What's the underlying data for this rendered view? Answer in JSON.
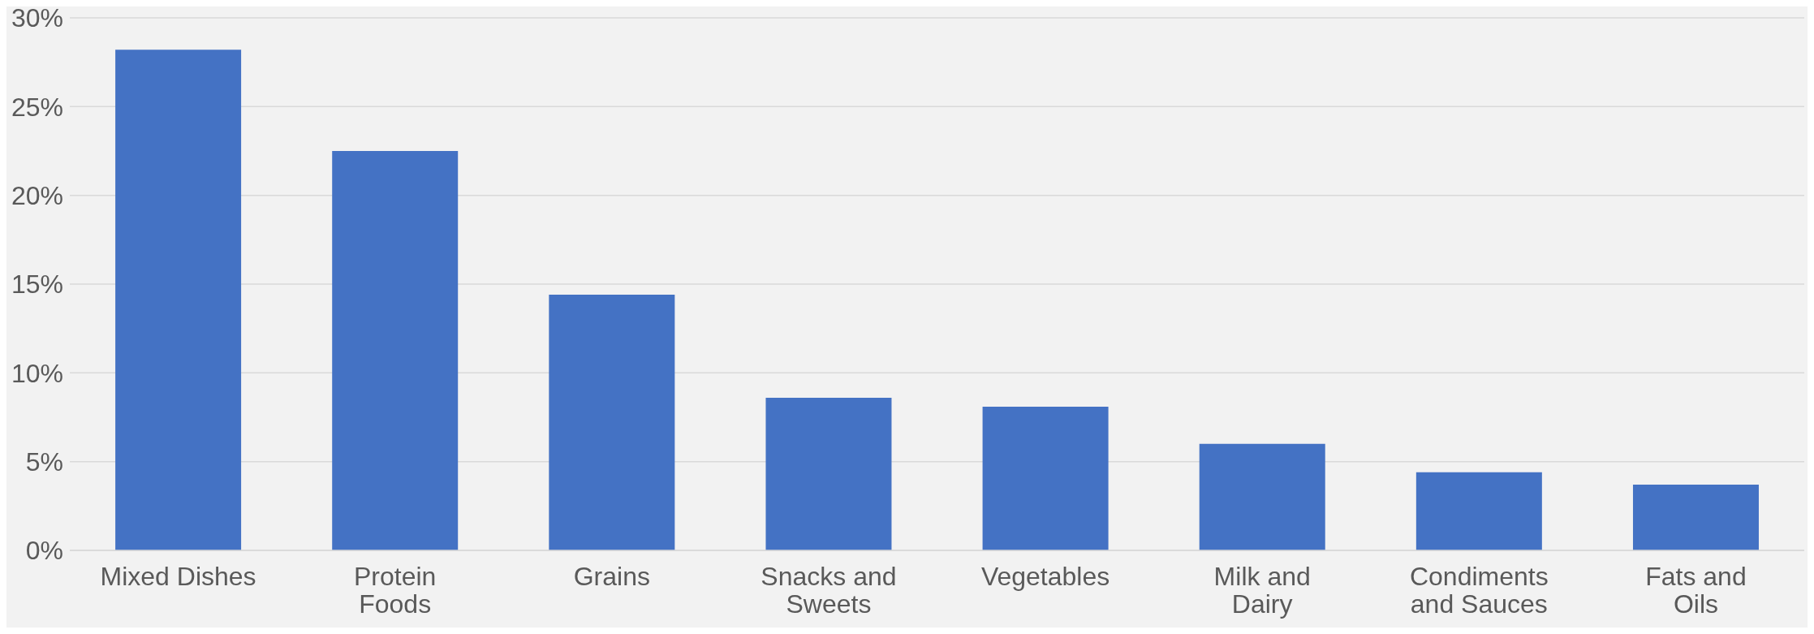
{
  "chart_data": {
    "type": "bar",
    "categories": [
      "Mixed Dishes",
      "Protein Foods",
      "Grains",
      "Snacks and Sweets",
      "Vegetables",
      "Milk and Dairy",
      "Condiments and Sauces",
      "Fats and Oils"
    ],
    "values": [
      28.2,
      22.5,
      14.4,
      8.6,
      8.1,
      6.0,
      4.4,
      3.7
    ],
    "color": "#4472c4",
    "ylim": [
      0,
      30
    ],
    "yticks": [
      {
        "value": 0,
        "label": "0%"
      },
      {
        "value": 5,
        "label": "5%"
      },
      {
        "value": 10,
        "label": "10%"
      },
      {
        "value": 15,
        "label": "15%"
      },
      {
        "value": 20,
        "label": "20%"
      },
      {
        "value": 25,
        "label": "25%"
      },
      {
        "value": 30,
        "label": "30%"
      }
    ],
    "grid": "y"
  }
}
